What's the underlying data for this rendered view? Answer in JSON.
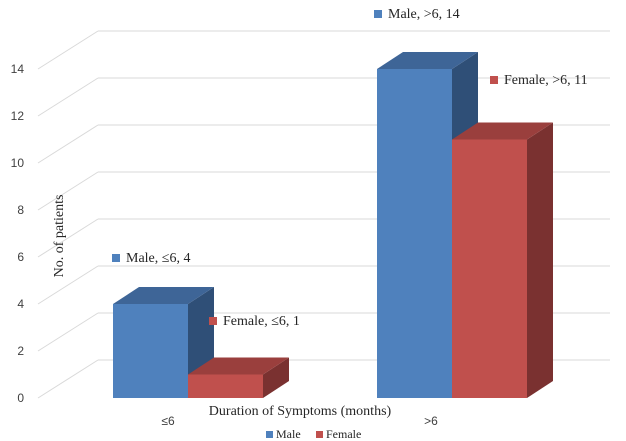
{
  "chart_data": {
    "type": "bar",
    "title": "",
    "xlabel": "Duration of Symptoms (months)",
    "ylabel": "No. of patients",
    "categories": [
      "≤6",
      ">6"
    ],
    "series": [
      {
        "name": "Male",
        "values": [
          4,
          14
        ],
        "color": "#4F81BD",
        "top_color": "#3E6597",
        "side_color": "#2F4F77"
      },
      {
        "name": "Female",
        "values": [
          1,
          11
        ],
        "color": "#C0504D",
        "top_color": "#9A3F3D",
        "side_color": "#7A3130"
      }
    ],
    "ylim": [
      0,
      14
    ],
    "yticks": [
      0,
      2,
      4,
      6,
      8,
      10,
      12,
      14
    ],
    "grid": true,
    "legend_position": "bottom",
    "data_labels": [
      {
        "series": "Male",
        "category": "≤6",
        "text": "Male, ≤6, 4"
      },
      {
        "series": "Female",
        "category": "≤6",
        "text": "Female, ≤6, 1"
      },
      {
        "series": "Male",
        "category": ">6",
        "text": "Male, >6, 14"
      },
      {
        "series": "Female",
        "category": ">6",
        "text": "Female, >6, 11"
      }
    ]
  }
}
